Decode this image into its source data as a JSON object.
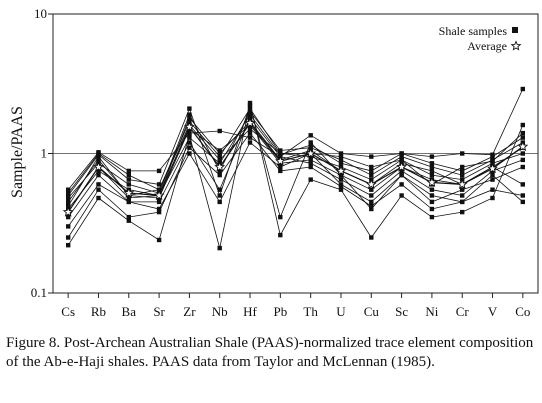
{
  "chart_data": {
    "type": "line",
    "yscale": "log",
    "ylim": [
      0.1,
      10
    ],
    "yticks": [
      0.1,
      1,
      10
    ],
    "ytick_labels": [
      "0.1",
      "1",
      "10"
    ],
    "ylabel": "Sample/PAAS",
    "xlabel": "",
    "categories": [
      "Cs",
      "Rb",
      "Ba",
      "Sr",
      "Zr",
      "Nb",
      "Hf",
      "Pb",
      "Th",
      "U",
      "Cu",
      "Sc",
      "Ni",
      "Cr",
      "V",
      "Co"
    ],
    "reference_line": 1,
    "legend": {
      "position": "top-right",
      "entries": [
        {
          "label": "Shale samples",
          "marker": "square"
        },
        {
          "label": "Average",
          "marker": "open-star"
        }
      ]
    },
    "series": [
      {
        "values": [
          0.55,
          1.02,
          0.75,
          0.75,
          1.4,
          1.45,
          1.3,
          0.95,
          1.35,
          1.0,
          0.95,
          1.0,
          0.95,
          1.0,
          0.98,
          2.9
        ]
      },
      {
        "values": [
          0.22,
          0.48,
          0.33,
          0.24,
          1.35,
          0.21,
          2.3,
          0.26,
          0.65,
          0.55,
          0.25,
          0.5,
          0.35,
          0.38,
          0.48,
          1.6
        ]
      },
      {
        "values": [
          0.5,
          0.98,
          0.65,
          0.6,
          2.1,
          0.5,
          2.2,
          0.35,
          1.2,
          0.7,
          0.4,
          0.7,
          0.5,
          0.45,
          0.7,
          0.45
        ]
      },
      {
        "values": [
          0.4,
          0.75,
          0.55,
          0.5,
          1.8,
          1.0,
          1.7,
          0.9,
          1.05,
          0.75,
          0.6,
          0.85,
          0.75,
          0.6,
          0.8,
          1.1
        ]
      },
      {
        "values": [
          0.45,
          0.9,
          0.5,
          0.55,
          1.6,
          0.9,
          1.5,
          1.0,
          0.95,
          0.8,
          0.65,
          0.9,
          0.7,
          0.65,
          0.85,
          1.0
        ]
      },
      {
        "values": [
          0.35,
          0.7,
          0.45,
          0.45,
          1.2,
          0.55,
          1.8,
          0.95,
          0.85,
          0.65,
          0.5,
          0.75,
          0.55,
          0.5,
          0.75,
          0.9
        ]
      },
      {
        "values": [
          0.48,
          0.85,
          0.6,
          0.52,
          1.9,
          0.75,
          2.0,
          1.05,
          1.1,
          0.9,
          0.7,
          0.95,
          0.8,
          0.7,
          0.9,
          1.2
        ]
      },
      {
        "values": [
          0.3,
          0.6,
          0.45,
          0.4,
          1.0,
          0.45,
          1.2,
          0.8,
          1.0,
          0.6,
          0.45,
          0.7,
          0.45,
          0.55,
          0.65,
          0.8
        ]
      },
      {
        "values": [
          0.42,
          0.95,
          0.5,
          0.48,
          1.5,
          1.05,
          1.6,
          0.85,
          0.9,
          0.7,
          0.55,
          0.8,
          0.65,
          0.6,
          0.8,
          0.6
        ]
      },
      {
        "values": [
          0.38,
          0.8,
          0.48,
          0.5,
          1.3,
          0.85,
          1.9,
          0.98,
          1.15,
          0.85,
          0.75,
          1.0,
          0.85,
          0.75,
          0.95,
          1.3
        ]
      },
      {
        "values": [
          0.25,
          0.55,
          0.35,
          0.38,
          1.1,
          0.7,
          1.4,
          0.75,
          0.8,
          0.58,
          0.42,
          0.6,
          0.4,
          0.45,
          0.55,
          0.5
        ]
      },
      {
        "values": [
          0.52,
          1.0,
          0.7,
          0.55,
          1.7,
          0.95,
          2.1,
          1.0,
          1.0,
          0.95,
          0.8,
          0.9,
          0.6,
          0.8,
          0.88,
          1.4
        ]
      }
    ],
    "average": {
      "name": "Average",
      "values": [
        0.38,
        0.8,
        0.52,
        0.5,
        1.55,
        0.8,
        1.65,
        0.88,
        1.0,
        0.75,
        0.6,
        0.8,
        0.62,
        0.6,
        0.78,
        1.12
      ]
    }
  },
  "caption": "Figure 8. Post-Archean Australian Shale (PAAS)-normalized trace element composition of the Ab-e-Haji shales. PAAS data from Taylor and McLennan (1985)."
}
